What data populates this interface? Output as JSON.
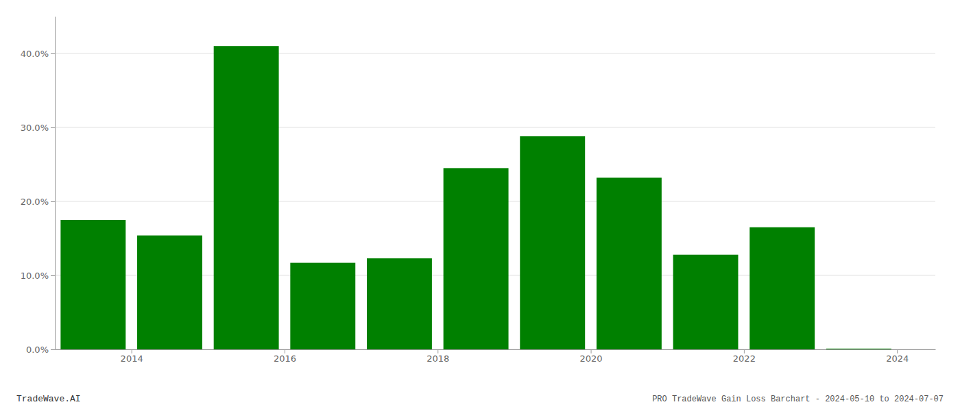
{
  "chart_data": {
    "type": "bar",
    "title": "PRO TradeWave Gain Loss Barchart - 2024-05-10 to 2024-07-07",
    "annotations": [
      "TradeWave.AI"
    ],
    "x": [
      2013.5,
      2014.5,
      2015.5,
      2016.5,
      2017.5,
      2018.5,
      2019.5,
      2020.5,
      2021.5,
      2022.5,
      2023.5
    ],
    "values": [
      0.175,
      0.154,
      0.41,
      0.117,
      0.123,
      0.245,
      0.288,
      0.232,
      0.128,
      0.165,
      0.001
    ],
    "color": "#008000",
    "xlim": [
      2013.0,
      2024.5
    ],
    "xticks": [
      2014,
      2016,
      2018,
      2020,
      2022,
      2024
    ],
    "ylim": [
      0,
      0.45
    ],
    "yticks": [
      {
        "value": 0.0,
        "label": "0.0%"
      },
      {
        "value": 0.1,
        "label": "10.0%"
      },
      {
        "value": 0.2,
        "label": "20.0%"
      },
      {
        "value": 0.3,
        "label": "30.0%"
      },
      {
        "value": 0.4,
        "label": "40.0%"
      }
    ],
    "grid": true
  }
}
